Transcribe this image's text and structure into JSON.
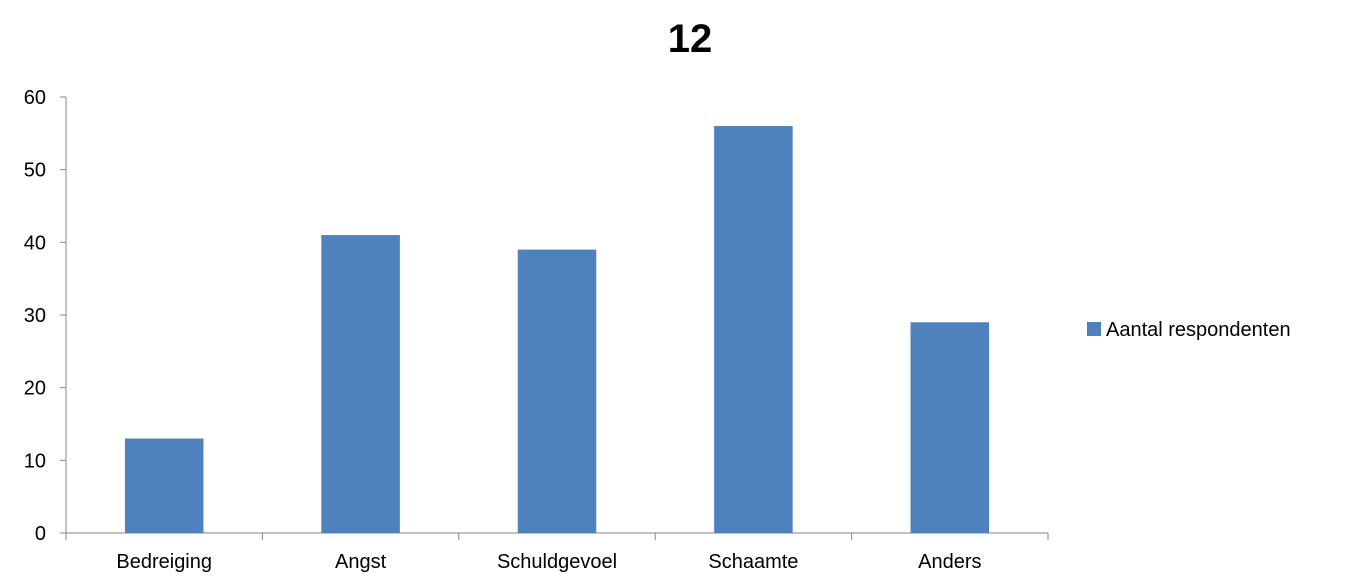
{
  "chart_data": {
    "type": "bar",
    "title": "12",
    "categories": [
      "Bedreiging",
      "Angst",
      "Schuldgevoel",
      "Schaamte",
      "Anders"
    ],
    "series": [
      {
        "name": "Aantal respondenten",
        "values": [
          13,
          41,
          39,
          56,
          29
        ]
      }
    ],
    "ylim": [
      0,
      60
    ],
    "yticks": [
      0,
      10,
      20,
      30,
      40,
      50,
      60
    ],
    "xlabel": "",
    "ylabel": "",
    "grid": false,
    "legend_position": "right",
    "colors": {
      "bar": "#4f81bd",
      "axis": "#868686"
    }
  }
}
